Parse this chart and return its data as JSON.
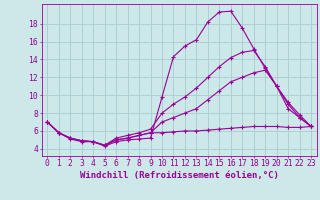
{
  "background_color": "#cce8e8",
  "grid_color": "#aacccc",
  "line_color": "#990099",
  "xlabel": "Windchill (Refroidissement éolien,°C)",
  "xlabel_fontsize": 6.5,
  "tick_fontsize": 5.8,
  "ytick_values": [
    4,
    6,
    8,
    10,
    12,
    14,
    16,
    18
  ],
  "xlim": [
    -0.5,
    23.5
  ],
  "ylim": [
    3.2,
    20.2
  ],
  "series1_x": [
    0,
    1,
    2,
    3,
    4,
    5,
    6,
    7,
    8,
    9,
    10,
    11,
    12,
    13,
    14,
    15,
    16,
    17,
    18,
    19,
    20,
    21,
    22,
    23
  ],
  "series1_y": [
    7.0,
    5.8,
    5.1,
    4.8,
    4.8,
    4.3,
    4.8,
    5.0,
    5.1,
    5.2,
    9.8,
    14.3,
    15.5,
    16.2,
    18.2,
    19.3,
    19.4,
    17.5,
    15.2,
    13.0,
    11.0,
    8.5,
    7.5,
    6.5
  ],
  "series2_x": [
    0,
    1,
    2,
    3,
    4,
    5,
    6,
    7,
    8,
    9,
    10,
    11,
    12,
    13,
    14,
    15,
    16,
    17,
    18,
    19,
    20,
    21,
    22,
    23
  ],
  "series2_y": [
    7.0,
    5.8,
    5.2,
    4.9,
    4.8,
    4.4,
    5.2,
    5.5,
    5.8,
    6.2,
    8.0,
    9.0,
    9.8,
    10.8,
    12.0,
    13.2,
    14.2,
    14.8,
    15.0,
    13.2,
    11.0,
    9.2,
    7.8,
    6.5
  ],
  "series3_x": [
    0,
    1,
    2,
    3,
    4,
    5,
    6,
    7,
    8,
    9,
    10,
    11,
    12,
    13,
    14,
    15,
    16,
    17,
    18,
    19,
    20,
    21,
    22,
    23
  ],
  "series3_y": [
    7.0,
    5.8,
    5.2,
    4.9,
    4.8,
    4.4,
    5.0,
    5.2,
    5.5,
    5.8,
    7.0,
    7.5,
    8.0,
    8.5,
    9.5,
    10.5,
    11.5,
    12.0,
    12.5,
    12.8,
    11.0,
    9.0,
    7.5,
    6.5
  ],
  "series4_x": [
    0,
    1,
    2,
    3,
    4,
    5,
    6,
    7,
    8,
    9,
    10,
    11,
    12,
    13,
    14,
    15,
    16,
    17,
    18,
    19,
    20,
    21,
    22,
    23
  ],
  "series4_y": [
    7.0,
    5.8,
    5.2,
    4.9,
    4.8,
    4.4,
    5.0,
    5.2,
    5.5,
    5.8,
    5.8,
    5.9,
    6.0,
    6.0,
    6.1,
    6.2,
    6.3,
    6.4,
    6.5,
    6.5,
    6.5,
    6.4,
    6.4,
    6.5
  ]
}
